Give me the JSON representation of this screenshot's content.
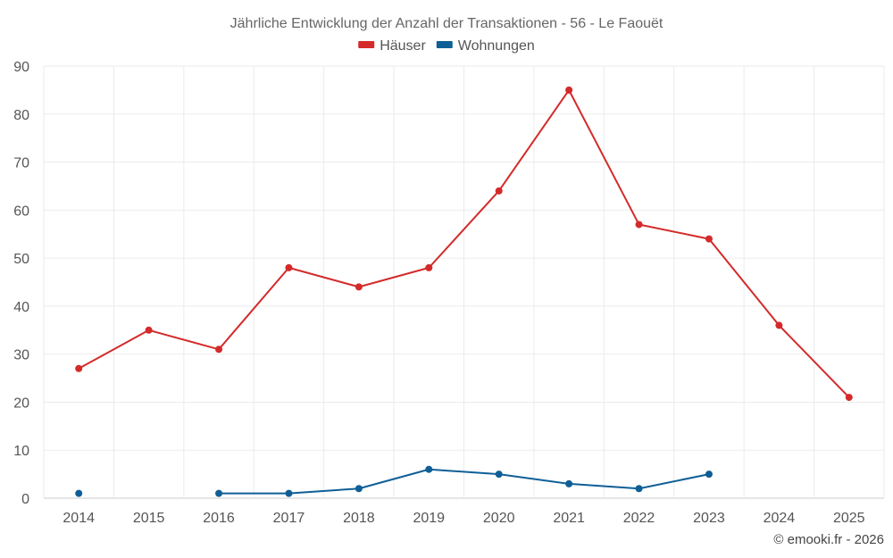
{
  "chart_data": {
    "type": "line",
    "title": "Jährliche Entwicklung der Anzahl der Transaktionen - 56 - Le Faouët",
    "xlabel": "",
    "ylabel": "",
    "categories": [
      "2014",
      "2015",
      "2016",
      "2017",
      "2018",
      "2019",
      "2020",
      "2021",
      "2022",
      "2023",
      "2024",
      "2025"
    ],
    "ylim": [
      0,
      90
    ],
    "yticks": [
      0,
      10,
      20,
      30,
      40,
      50,
      60,
      70,
      80,
      90
    ],
    "grid": true,
    "legend_position": "top-center",
    "series": [
      {
        "name": "Häuser",
        "color": "#d42a2a",
        "values": [
          27,
          35,
          31,
          48,
          44,
          48,
          64,
          85,
          57,
          54,
          36,
          21
        ]
      },
      {
        "name": "Wohnungen",
        "color": "#0f5f96",
        "values": [
          1,
          null,
          1,
          1,
          2,
          6,
          5,
          3,
          2,
          5,
          null,
          null
        ]
      }
    ]
  },
  "credit": "© emooki.fr - 2026"
}
